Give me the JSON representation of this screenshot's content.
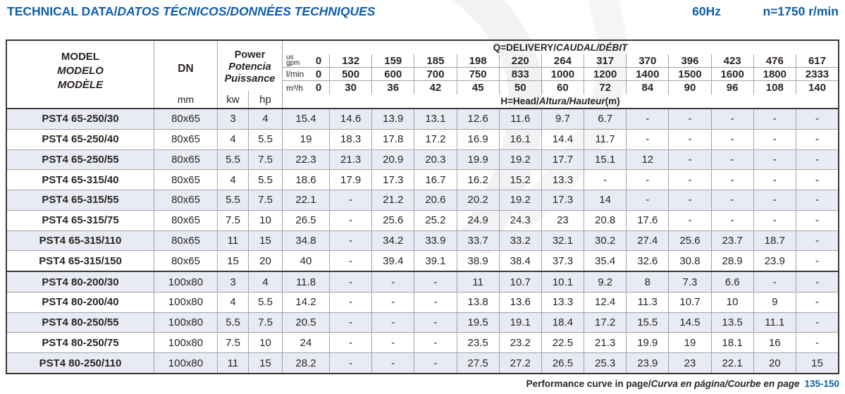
{
  "page": {
    "title_en": "TECHNICAL DATA/",
    "title_es": "DATOS TÉCNICOS/",
    "title_fr": "DONNÉES TECHNIQUES",
    "frequency": "60Hz",
    "speed": "n=1750 r/min",
    "footer_en": "Performance curve in page/",
    "footer_es": "Curva en página/",
    "footer_fr": "Courbe en page",
    "footer_pages": "135-150",
    "accent_color": "#0d5fae",
    "stripe_color": "#e8ebf3"
  },
  "table": {
    "model": {
      "en": "MODEL",
      "es": "MODELO",
      "fr": "MODÈLE"
    },
    "dn": {
      "label": "DN",
      "unit": "mm"
    },
    "power": {
      "en": "Power",
      "es": "Potencia",
      "fr": "Puissance",
      "kw": "kw",
      "hp": "hp"
    },
    "delivery": {
      "en": "Q=DELIVERY/",
      "es": "CAUDAL/",
      "fr": "DÉBIT"
    },
    "head_note": {
      "en": "H=Head/",
      "es": "Altura/",
      "fr": "Hauteur",
      "unit": "(m)"
    },
    "flow_rows": [
      {
        "label": [
          "us",
          "gpm"
        ],
        "values": [
          "0",
          "132",
          "159",
          "185",
          "198",
          "220",
          "264",
          "317",
          "370",
          "396",
          "423",
          "476",
          "617"
        ]
      },
      {
        "label": [
          "l/min"
        ],
        "values": [
          "0",
          "500",
          "600",
          "700",
          "750",
          "833",
          "1000",
          "1200",
          "1400",
          "1500",
          "1600",
          "1800",
          "2333"
        ]
      },
      {
        "label": [
          "m³/h"
        ],
        "values": [
          "0",
          "30",
          "36",
          "42",
          "45",
          "50",
          "60",
          "72",
          "84",
          "90",
          "96",
          "108",
          "140"
        ]
      }
    ],
    "groups": [
      {
        "rows": [
          {
            "model": "PST4 65-250/30",
            "dn": "80x65",
            "kw": "3",
            "hp": "4",
            "head": [
              "15.4",
              "14.6",
              "13.9",
              "13.1",
              "12.6",
              "11.6",
              "9.7",
              "6.7",
              "-",
              "-",
              "-",
              "-",
              "-"
            ]
          },
          {
            "model": "PST4 65-250/40",
            "dn": "80x65",
            "kw": "4",
            "hp": "5.5",
            "head": [
              "19",
              "18.3",
              "17.8",
              "17.2",
              "16.9",
              "16.1",
              "14.4",
              "11.7",
              "-",
              "-",
              "-",
              "-",
              "-"
            ]
          },
          {
            "model": "PST4 65-250/55",
            "dn": "80x65",
            "kw": "5.5",
            "hp": "7.5",
            "head": [
              "22.3",
              "21.3",
              "20.9",
              "20.3",
              "19.9",
              "19.2",
              "17.7",
              "15.1",
              "12",
              "-",
              "-",
              "-",
              "-"
            ]
          },
          {
            "model": "PST4 65-315/40",
            "dn": "80x65",
            "kw": "4",
            "hp": "5.5",
            "head": [
              "18.6",
              "17.9",
              "17.3",
              "16.7",
              "16.2",
              "15.2",
              "13.3",
              "-",
              "-",
              "-",
              "-",
              "-",
              "-"
            ]
          },
          {
            "model": "PST4 65-315/55",
            "dn": "80x65",
            "kw": "5.5",
            "hp": "7.5",
            "head": [
              "22.1",
              "-",
              "21.2",
              "20.6",
              "20.2",
              "19.2",
              "17.3",
              "14",
              "-",
              "-",
              "-",
              "-",
              "-"
            ]
          },
          {
            "model": "PST4 65-315/75",
            "dn": "80x65",
            "kw": "7.5",
            "hp": "10",
            "head": [
              "26.5",
              "-",
              "25.6",
              "25.2",
              "24.9",
              "24.3",
              "23",
              "20.8",
              "17.6",
              "-",
              "-",
              "-",
              "-"
            ]
          },
          {
            "model": "PST4 65-315/110",
            "dn": "80x65",
            "kw": "11",
            "hp": "15",
            "head": [
              "34.8",
              "-",
              "34.2",
              "33.9",
              "33.7",
              "33.2",
              "32.1",
              "30.2",
              "27.4",
              "25.6",
              "23.7",
              "18.7",
              "-"
            ]
          },
          {
            "model": "PST4 65-315/150",
            "dn": "80x65",
            "kw": "15",
            "hp": "20",
            "head": [
              "40",
              "-",
              "39.4",
              "39.1",
              "38.9",
              "38.4",
              "37.3",
              "35.4",
              "32.6",
              "30.8",
              "28.9",
              "23.9",
              "-"
            ]
          }
        ]
      },
      {
        "rows": [
          {
            "model": "PST4 80-200/30",
            "dn": "100x80",
            "kw": "3",
            "hp": "4",
            "head": [
              "11.8",
              "-",
              "-",
              "-",
              "11",
              "10.7",
              "10.1",
              "9.2",
              "8",
              "7.3",
              "6.6",
              "-",
              "-"
            ]
          },
          {
            "model": "PST4 80-200/40",
            "dn": "100x80",
            "kw": "4",
            "hp": "5.5",
            "head": [
              "14.2",
              "-",
              "-",
              "-",
              "13.8",
              "13.6",
              "13.3",
              "12.4",
              "11.3",
              "10.7",
              "10",
              "9",
              "-"
            ]
          },
          {
            "model": "PST4 80-250/55",
            "dn": "100x80",
            "kw": "5.5",
            "hp": "7.5",
            "head": [
              "20.5",
              "-",
              "-",
              "-",
              "19.5",
              "19.1",
              "18.4",
              "17.2",
              "15.5",
              "14.5",
              "13.5",
              "11.1",
              "-"
            ]
          },
          {
            "model": "PST4 80-250/75",
            "dn": "100x80",
            "kw": "7.5",
            "hp": "10",
            "head": [
              "24",
              "-",
              "-",
              "-",
              "23.5",
              "23.2",
              "22.5",
              "21.3",
              "19.9",
              "19",
              "18.1",
              "16",
              "-"
            ]
          },
          {
            "model": "PST4 80-250/110",
            "dn": "100x80",
            "kw": "11",
            "hp": "15",
            "head": [
              "28.2",
              "-",
              "-",
              "-",
              "27.5",
              "27.2",
              "26.5",
              "25.3",
              "23.9",
              "23",
              "22.1",
              "20",
              "15"
            ]
          }
        ]
      }
    ]
  }
}
